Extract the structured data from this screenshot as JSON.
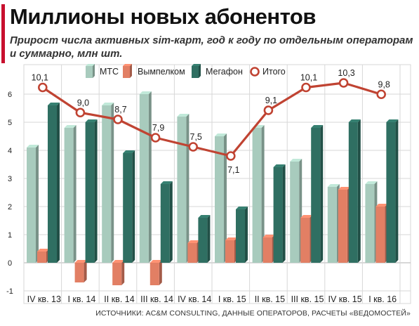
{
  "title": "Миллионы новых абонентов",
  "subtitle": "Прирост числа активных sim-карт, год к году по отдельным операторам и суммарно, млн шт.",
  "source": "ИСТОЧНИКИ: AC&M CONSULTING, ДАННЫЕ ОПЕРАТОРОВ, РАСЧЕТЫ «ВЕДОМОСТЕЙ»",
  "colors": {
    "mts": "#a8cbbd",
    "beeline": "#e27f64",
    "megafon": "#2f6f62",
    "total": "#c04332",
    "grid": "#d7d7d7",
    "accent": "#c8102e"
  },
  "chart_data": {
    "type": "bar",
    "categories": [
      "IV кв. 13",
      "I кв. 14",
      "II кв. 14",
      "III кв. 14",
      "IV кв. 14",
      "I кв. 15",
      "II кв. 15",
      "III кв. 15",
      "IV кв. 15",
      "I кв. 16"
    ],
    "series": [
      {
        "name": "МТС",
        "type": "bar",
        "color": "#a8cbbd",
        "values": [
          4.1,
          4.8,
          5.6,
          6.0,
          5.2,
          4.5,
          4.8,
          3.6,
          2.7,
          2.8
        ]
      },
      {
        "name": "Вымпелком",
        "type": "bar",
        "color": "#e27f64",
        "values": [
          0.4,
          -0.7,
          -0.8,
          -0.8,
          0.7,
          0.8,
          0.9,
          1.6,
          2.6,
          2.0
        ]
      },
      {
        "name": "Мегафон",
        "type": "bar",
        "color": "#2f6f62",
        "values": [
          5.6,
          5.0,
          3.9,
          2.8,
          1.6,
          1.9,
          3.4,
          4.8,
          5.0,
          5.0
        ]
      },
      {
        "name": "Итого",
        "type": "line",
        "color": "#c04332",
        "values": [
          10.1,
          9.0,
          8.7,
          7.9,
          7.5,
          7.1,
          9.1,
          10.1,
          10.3,
          9.8
        ]
      }
    ],
    "total_labels": [
      "10,1",
      "9,0",
      "8,7",
      "7,9",
      "7,5",
      "7,1",
      "9,1",
      "10,1",
      "10,3",
      "9,8"
    ],
    "ylim": [
      -1,
      6
    ],
    "yticks": [
      "-1",
      "0",
      "1",
      "2",
      "3",
      "4",
      "5",
      "6"
    ],
    "legend": "top",
    "grid": true
  }
}
